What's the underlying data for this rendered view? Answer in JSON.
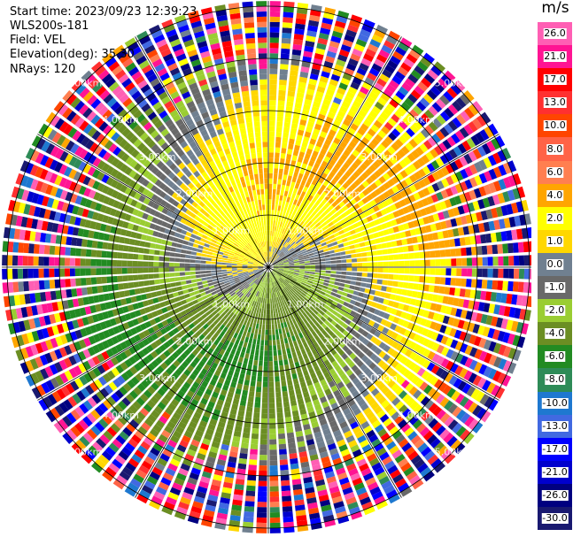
{
  "header": {
    "start_time": "Start time: 2023/09/23 12:39:23",
    "instrument": "WLS200s-181",
    "field": "Field: VEL",
    "elevation": "Elevation(deg): 35.30",
    "nrays": "NRays: 120"
  },
  "chart_data": {
    "type": "heatmap",
    "projection": "polar PPI",
    "rays": 120,
    "max_range_km": 5.1,
    "range_ring_labels": [
      "1.00km",
      "2.00km",
      "3.00km",
      "4.00km",
      "5.00km"
    ],
    "range_rings_km": [
      1,
      2,
      3,
      4,
      5
    ],
    "spoke_interval_deg": 30,
    "field_pattern": "positive (yellow) velocities toward north-west, negative (green) toward south-east, near-zero grey spiral band in between; noisy returns beyond ~3.5 km",
    "colorbar": {
      "unit": "m/s",
      "labels": [
        "26.0",
        "21.0",
        "17.0",
        "13.0",
        "10.0",
        "8.0",
        "6.0",
        "4.0",
        "2.0",
        "1.0",
        "0.0",
        "-1.0",
        "-2.0",
        "-4.0",
        "-6.0",
        "-8.0",
        "-10.0",
        "-13.0",
        "-17.0",
        "-21.0",
        "-26.0",
        "-30.0"
      ],
      "colors": [
        "#ff5fb4",
        "#ff1493",
        "#ff0000",
        "#ff3030",
        "#ff4500",
        "#ff6347",
        "#ff7f50",
        "#ffa500",
        "#ffff00",
        "#ffd700",
        "#708090",
        "#696969",
        "#9acd32",
        "#6b8e23",
        "#228b22",
        "#2e8b57",
        "#1e78d0",
        "#4169e1",
        "#0000ff",
        "#0000cd",
        "#000080",
        "#191970"
      ]
    }
  }
}
